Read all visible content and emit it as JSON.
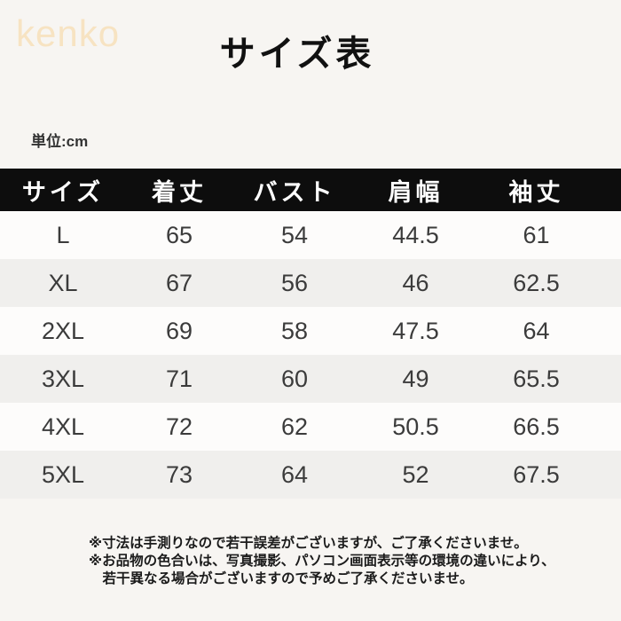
{
  "logo": {
    "text": "kenko"
  },
  "title": "サイズ表",
  "unit_label": "単位:cm",
  "table": {
    "headers": [
      "サイズ",
      "着丈",
      "バスト",
      "肩幅",
      "袖丈"
    ],
    "rows": [
      {
        "size": "L",
        "length": "65",
        "bust": "54",
        "shoulder": "44.5",
        "sleeve": "61"
      },
      {
        "size": "XL",
        "length": "67",
        "bust": "56",
        "shoulder": "46",
        "sleeve": "62.5"
      },
      {
        "size": "2XL",
        "length": "69",
        "bust": "58",
        "shoulder": "47.5",
        "sleeve": "64"
      },
      {
        "size": "3XL",
        "length": "71",
        "bust": "60",
        "shoulder": "49",
        "sleeve": "65.5"
      },
      {
        "size": "4XL",
        "length": "72",
        "bust": "62",
        "shoulder": "50.5",
        "sleeve": "66.5"
      },
      {
        "size": "5XL",
        "length": "73",
        "bust": "64",
        "shoulder": "52",
        "sleeve": "67.5"
      }
    ]
  },
  "notes": [
    {
      "text": "※寸法は手測りなので若干誤差がございますが、ご了承くださいませ。"
    },
    {
      "text": "※お品物の色合いは、写真撮影、パソコン画面表示等の環境の違いにより、"
    },
    {
      "text": "若干異なる場合がございますので予めご了承くださいませ。"
    }
  ],
  "colors": {
    "page_bg": "#f7f5f2",
    "header_bg": "#0d0d0d",
    "header_text": "#ffffff",
    "row_bg": "#fdfcfb",
    "row_alt_bg": "#f0efed",
    "logo_text": "#f7e3c2",
    "body_text": "#3b3b3b"
  }
}
